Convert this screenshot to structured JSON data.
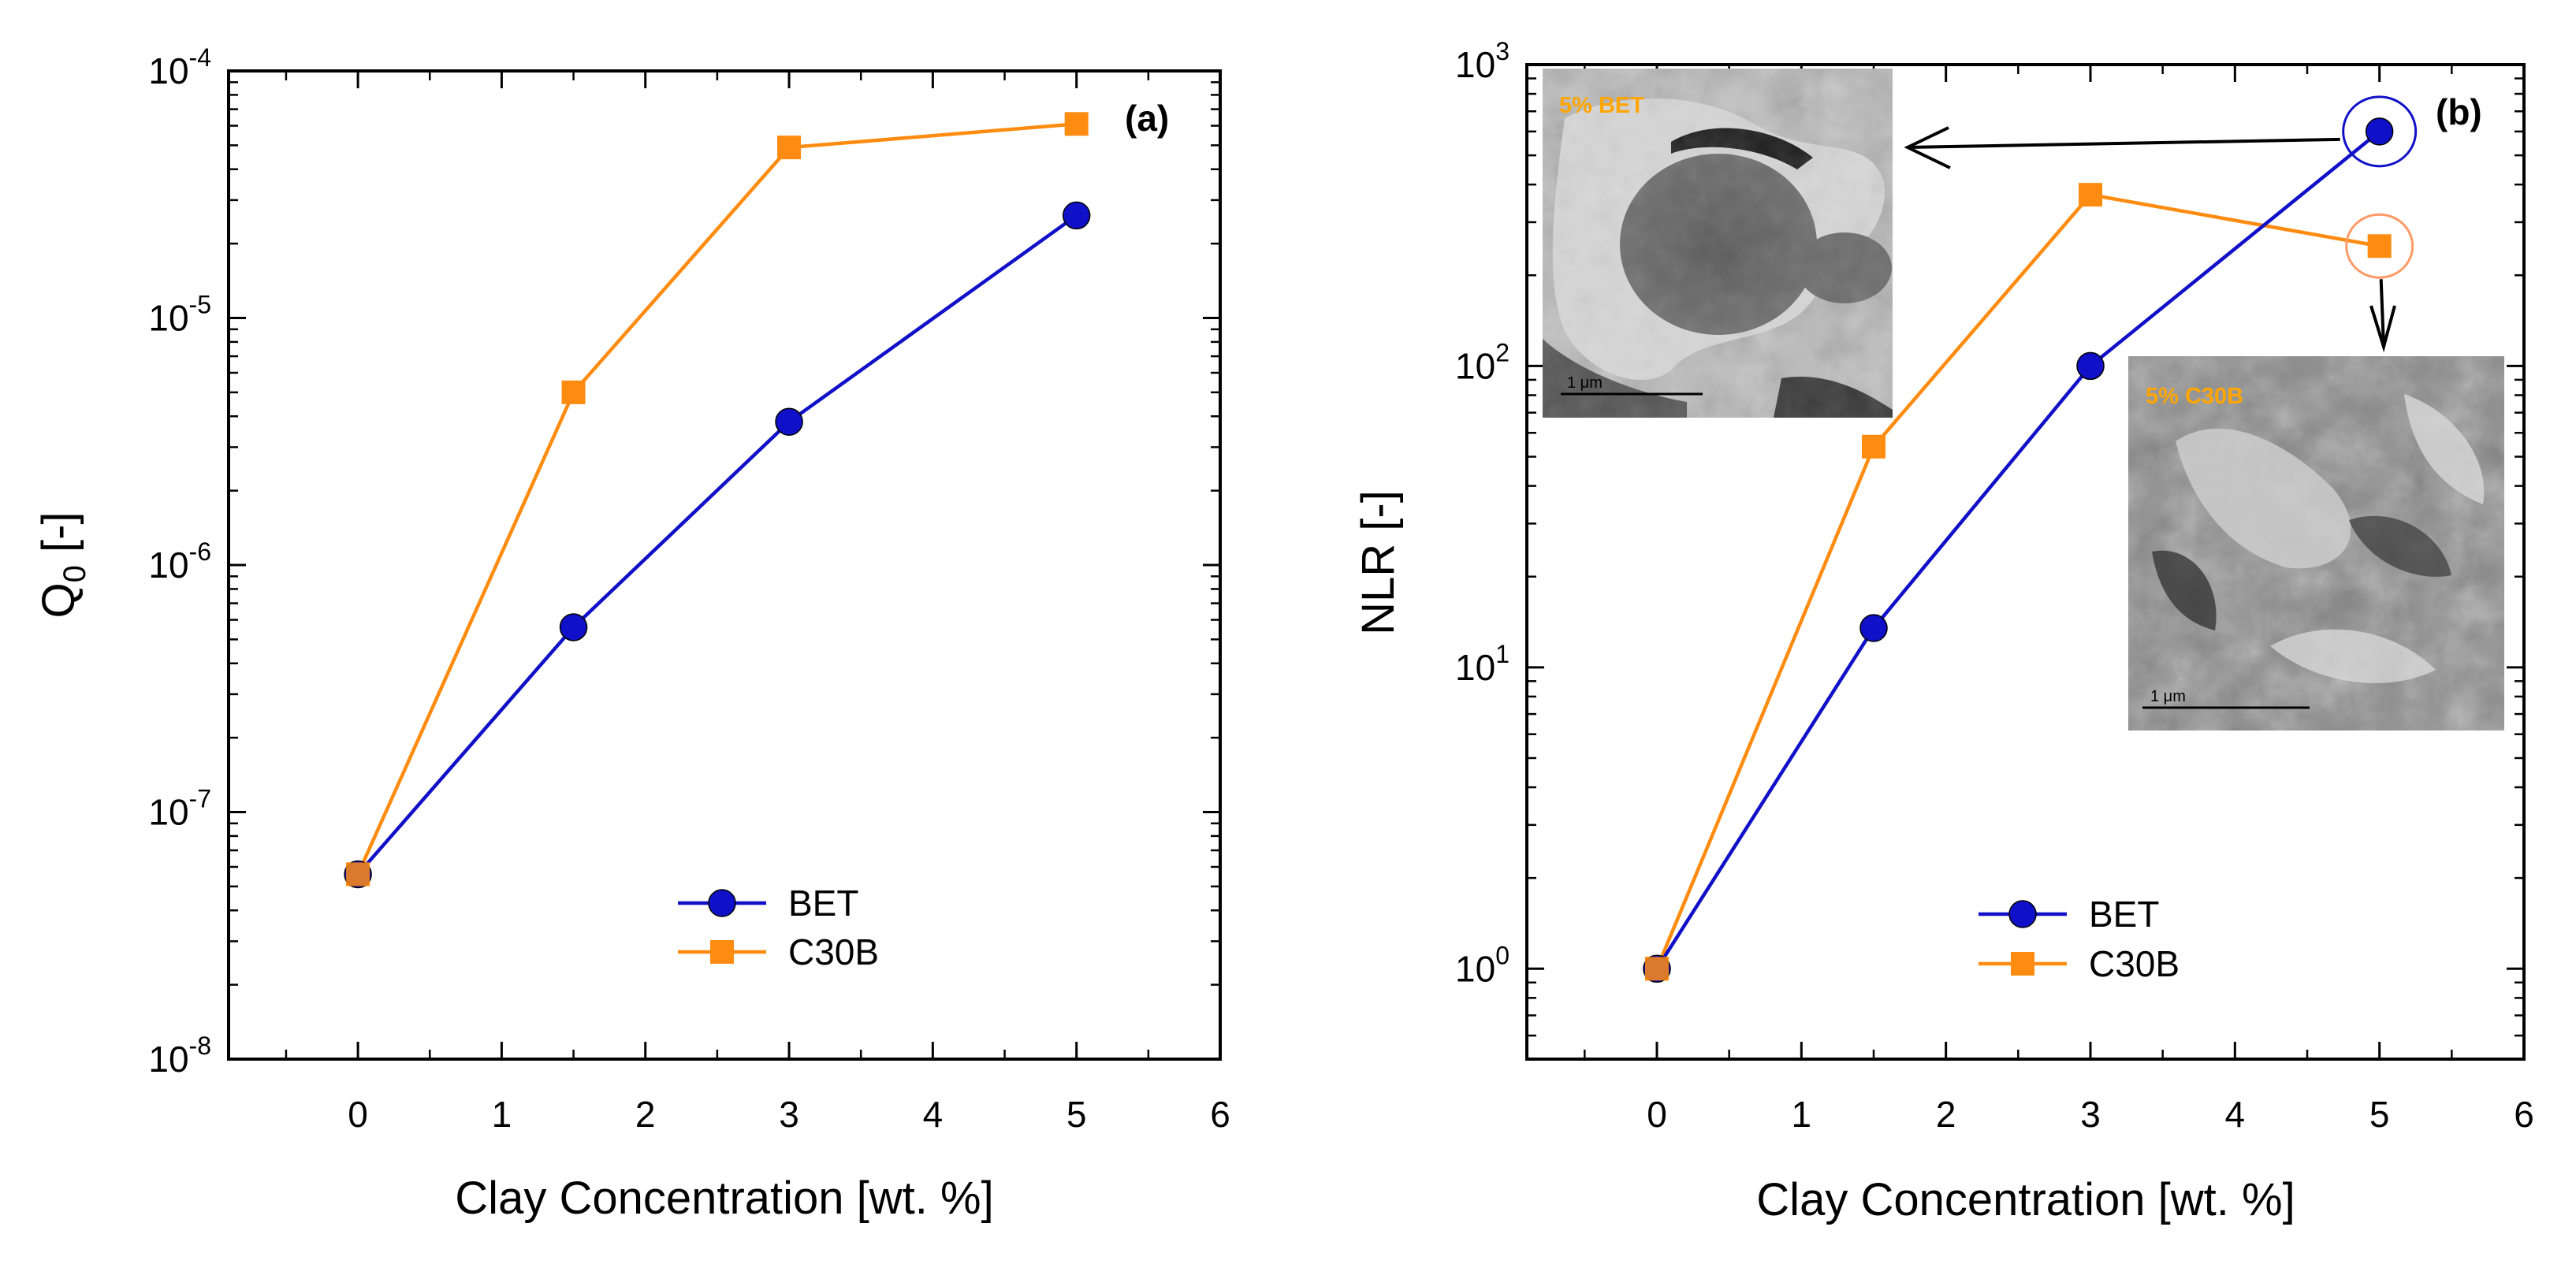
{
  "chart_data": [
    {
      "id": "a",
      "type": "line",
      "panel_label": "(a)",
      "xlabel": "Clay Concentration [wt. %]",
      "ylabel_main": "Q",
      "ylabel_sub": "0",
      "ylabel_tail": " [-]",
      "y_scale": "log",
      "xlim": [
        -0.9,
        6
      ],
      "ylim_exp": [
        -8,
        -4
      ],
      "x_ticks": [
        0,
        1,
        2,
        3,
        4,
        5,
        6
      ],
      "x_tick_labels": [
        "0",
        "1",
        "2",
        "3",
        "4",
        "5",
        "6"
      ],
      "y_ticks_exp": [
        -8,
        -7,
        -6,
        -5,
        -4
      ],
      "y_tick_base": "10",
      "y_tick_exponents": [
        "-8",
        "-7",
        "-6",
        "-5",
        "-4"
      ],
      "legend_position": "bottom-center",
      "series": [
        {
          "name": "BET",
          "color": "#1010c8",
          "marker": "circle",
          "x": [
            0,
            1.5,
            3,
            5
          ],
          "y": [
            5.6e-08,
            5.6e-07,
            3.8e-06,
            2.6e-05
          ]
        },
        {
          "name": "C30B",
          "color": "#ff8c10",
          "marker": "square",
          "x": [
            0,
            1.5,
            3,
            5
          ],
          "y": [
            5.6e-08,
            5e-06,
            4.9e-05,
            6.1e-05
          ]
        }
      ]
    },
    {
      "id": "b",
      "type": "line",
      "panel_label": "(b)",
      "xlabel": "Clay Concentration [wt. %]",
      "ylabel_main": "NLR",
      "ylabel_sub": "",
      "ylabel_tail": " [-]",
      "y_scale": "log",
      "xlim": [
        -0.9,
        6
      ],
      "ylim_exp": [
        -0.3,
        3
      ],
      "x_ticks": [
        0,
        1,
        2,
        3,
        4,
        5,
        6
      ],
      "x_tick_labels": [
        "0",
        "1",
        "2",
        "3",
        "4",
        "5",
        "6"
      ],
      "y_ticks_exp": [
        0,
        1,
        2,
        3
      ],
      "y_tick_base": "10",
      "y_tick_exponents": [
        "0",
        "1",
        "2",
        "3"
      ],
      "legend_position": "bottom-center",
      "series": [
        {
          "name": "BET",
          "color": "#1010c8",
          "marker": "circle",
          "x": [
            0,
            1.5,
            3,
            5
          ],
          "y": [
            1,
            13.5,
            100,
            600
          ]
        },
        {
          "name": "C30B",
          "color": "#ff8c10",
          "marker": "square",
          "x": [
            0,
            1.5,
            3,
            5
          ],
          "y": [
            1,
            54,
            370,
            250
          ]
        }
      ],
      "insets": [
        {
          "label": "5% BET",
          "scale_bar": "1 μm"
        },
        {
          "label": "5% C30B",
          "scale_bar": "1 μm"
        }
      ]
    }
  ]
}
